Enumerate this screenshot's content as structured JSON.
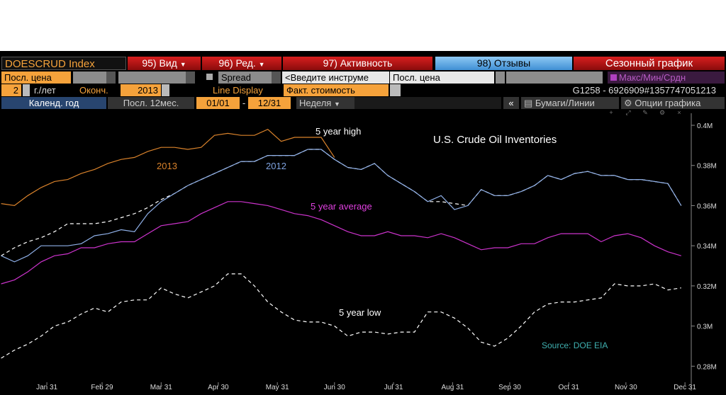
{
  "toolbar": {
    "security": "DOESCRUD Index",
    "menu_view": "95) Вид",
    "menu_edit": "96) Ред.",
    "menu_activity": "97) Активность",
    "menu_feedback": "98) Отзывы",
    "function_name": "Сезонный график",
    "field_price": "Посл. цена",
    "spread": "Spread",
    "instrument_input": "<Введите инструме",
    "field_price_2": "Посл. цена",
    "minmaxavg": "Макс/Мин/Срдн",
    "years": "2",
    "years_label": "г./лет",
    "end_label": "Оконч.",
    "end_year": "2013",
    "line_display": "Line Display",
    "line_value": "Факт. стоимость",
    "ticker_id": "G1258 - 6926909#1357747051213",
    "calendar_year": "Календ. год",
    "last_12m": "Посл. 12мес.",
    "date_from": "01/01",
    "date_sep": "-",
    "date_to": "12/31",
    "period": "Неделя",
    "collapse": "«",
    "securities_lines": "Бумаги/Линии",
    "chart_options": "Опции графика"
  },
  "chart_data": {
    "type": "line",
    "title": "U.S. Crude Oil Inventories",
    "source": "Source: DOE EIA",
    "x": [
      7,
      14,
      21,
      28,
      35,
      42,
      49,
      56,
      63,
      70,
      77,
      84,
      91,
      98,
      105,
      112,
      119,
      126,
      133,
      140,
      147,
      154,
      161,
      168,
      175,
      182,
      189,
      196,
      203,
      210,
      217,
      224,
      231,
      238,
      245,
      252,
      259,
      266,
      273,
      280,
      287,
      294,
      301,
      308,
      315,
      322,
      329,
      336,
      343,
      350,
      357,
      364
    ],
    "xlim": [
      6.4,
      369.3
    ],
    "xticks": [
      {
        "value": 31,
        "label": "Jan 31"
      },
      {
        "value": 60,
        "label": "Feb 29"
      },
      {
        "value": 91,
        "label": "Mar 31"
      },
      {
        "value": 121,
        "label": "Apr 30"
      },
      {
        "value": 152,
        "label": "May 31"
      },
      {
        "value": 182,
        "label": "Jun 30"
      },
      {
        "value": 213,
        "label": "Jul 31"
      },
      {
        "value": 244,
        "label": "Aug 31"
      },
      {
        "value": 274,
        "label": "Sep 30"
      },
      {
        "value": 305,
        "label": "Oct 31"
      },
      {
        "value": 335,
        "label": "Nov 30"
      },
      {
        "value": 366,
        "label": "Dec 31"
      }
    ],
    "ylim": [
      0.272,
      0.406
    ],
    "yticks": [
      {
        "value": 0.28,
        "label": "0.28M"
      },
      {
        "value": 0.3,
        "label": "0.3M"
      },
      {
        "value": 0.32,
        "label": "0.32M"
      },
      {
        "value": 0.34,
        "label": "0.34M"
      },
      {
        "value": 0.36,
        "label": "0.36M"
      },
      {
        "value": 0.38,
        "label": "0.38M"
      },
      {
        "value": 0.4,
        "label": "0.4M"
      }
    ],
    "grid": false,
    "series": [
      {
        "name": "5 year low",
        "color": "#ffffff",
        "dashed": true,
        "values": [
          0.284,
          0.288,
          0.291,
          0.295,
          0.3,
          0.302,
          0.306,
          0.309,
          0.307,
          0.312,
          0.313,
          0.313,
          0.319,
          0.316,
          0.314,
          0.317,
          0.32,
          0.326,
          0.326,
          0.32,
          0.312,
          0.307,
          0.303,
          0.302,
          0.302,
          0.3,
          0.295,
          0.297,
          0.297,
          0.296,
          0.297,
          0.297,
          0.307,
          0.307,
          0.304,
          0.299,
          0.292,
          0.29,
          0.294,
          0.3,
          0.307,
          0.311,
          0.312,
          0.312,
          0.313,
          0.314,
          0.321,
          0.32,
          0.32,
          0.321,
          0.318,
          0.319
        ]
      },
      {
        "name": "5 year high",
        "color": "#ffffff",
        "dashed": true,
        "values": [
          0.335,
          0.339,
          0.342,
          0.344,
          0.347,
          0.351,
          0.351,
          0.351,
          0.352,
          0.354,
          0.356,
          0.359,
          0.363,
          0.366,
          0.37,
          0.373,
          0.376,
          0.379,
          0.382,
          0.382,
          0.385,
          0.385,
          0.385,
          0.388,
          0.388,
          0.383,
          0.379,
          0.378,
          0.381,
          0.375,
          0.371,
          0.367,
          0.362,
          0.362,
          0.361,
          0.36,
          0.368,
          0.365,
          0.365,
          0.367,
          0.37,
          0.375,
          0.373,
          0.376,
          0.377,
          0.375,
          0.375,
          0.373,
          0.373,
          0.372,
          0.371,
          0.36
        ]
      },
      {
        "name": "5 year average",
        "color": "#cc33cc",
        "dashed": false,
        "values": [
          0.321,
          0.323,
          0.327,
          0.332,
          0.335,
          0.336,
          0.339,
          0.339,
          0.341,
          0.342,
          0.342,
          0.346,
          0.35,
          0.351,
          0.352,
          0.356,
          0.359,
          0.362,
          0.362,
          0.361,
          0.36,
          0.358,
          0.356,
          0.355,
          0.353,
          0.35,
          0.347,
          0.345,
          0.345,
          0.347,
          0.345,
          0.345,
          0.344,
          0.346,
          0.344,
          0.341,
          0.338,
          0.339,
          0.339,
          0.341,
          0.341,
          0.344,
          0.346,
          0.346,
          0.346,
          0.342,
          0.345,
          0.346,
          0.344,
          0.34,
          0.337,
          0.335
        ]
      },
      {
        "name": "2012",
        "color": "#8fb0e8",
        "dashed": false,
        "values": [
          0.335,
          0.332,
          0.335,
          0.34,
          0.34,
          0.34,
          0.341,
          0.345,
          0.346,
          0.348,
          0.347,
          0.356,
          0.362,
          0.366,
          0.37,
          0.373,
          0.376,
          0.379,
          0.382,
          0.382,
          0.385,
          0.385,
          0.385,
          0.388,
          0.388,
          0.383,
          0.379,
          0.378,
          0.381,
          0.375,
          0.371,
          0.367,
          0.362,
          0.365,
          0.358,
          0.36,
          0.368,
          0.365,
          0.365,
          0.367,
          0.37,
          0.375,
          0.373,
          0.376,
          0.377,
          0.375,
          0.375,
          0.373,
          0.373,
          0.372,
          0.371,
          0.36
        ]
      },
      {
        "name": "2013",
        "color": "#d9822b",
        "dashed": false,
        "values": [
          0.361,
          0.36,
          0.365,
          0.369,
          0.372,
          0.373,
          0.376,
          0.378,
          0.381,
          0.383,
          0.384,
          0.387,
          0.389,
          0.389,
          0.388,
          0.389,
          0.395,
          0.396,
          0.395,
          0.395,
          0.398,
          0.392,
          0.394,
          0.394,
          0.394,
          0.384,
          null,
          null,
          null,
          null,
          null,
          null,
          null,
          null,
          null,
          null,
          null,
          null,
          null,
          null,
          null,
          null,
          null,
          null,
          null,
          null,
          null,
          null,
          null,
          null,
          null,
          null
        ]
      }
    ]
  }
}
